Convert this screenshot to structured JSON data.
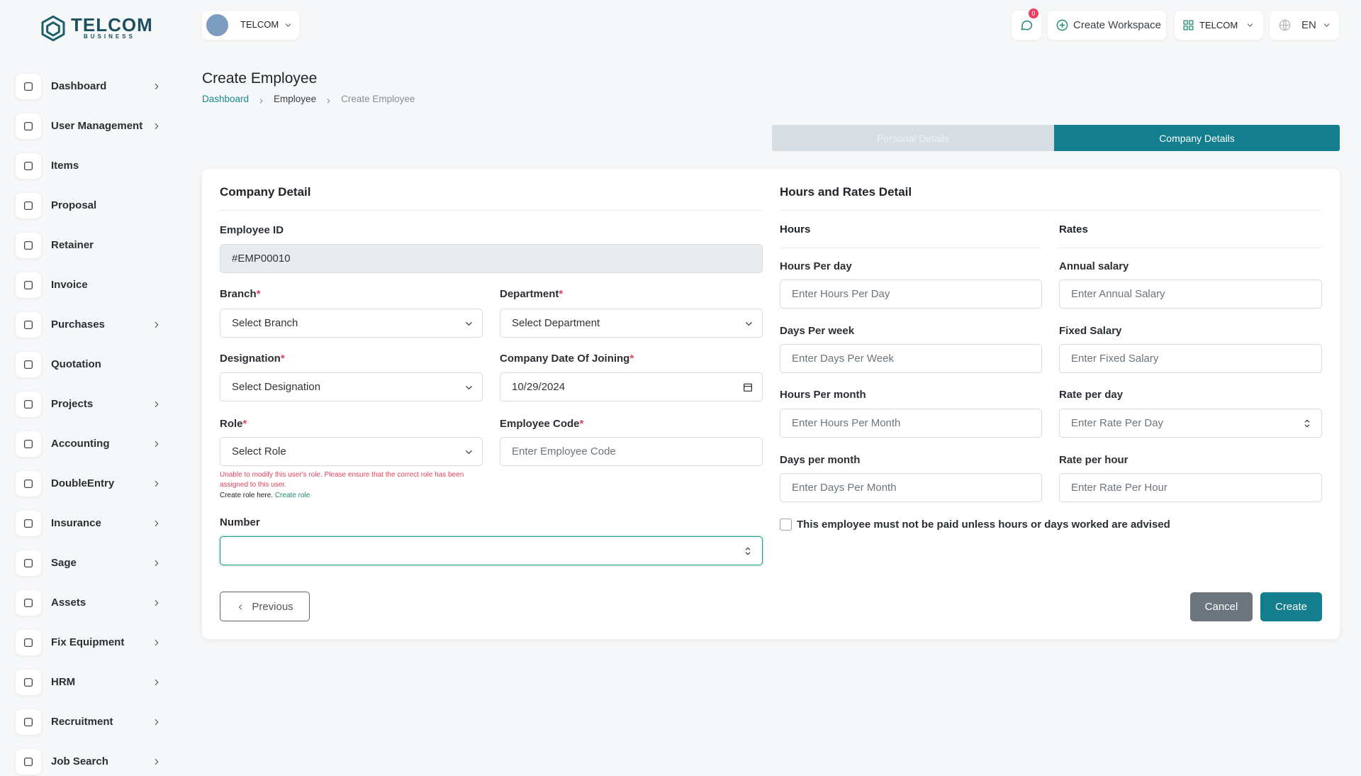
{
  "header": {
    "brand": "TELCOM",
    "brand_sub": "BUSINESS",
    "workspace": "TELCOM",
    "notifications": 0,
    "create_workspace": "Create Workspace",
    "current_workspace": "TELCOM",
    "language": "EN"
  },
  "sidebar": {
    "items": [
      {
        "label": "Dashboard",
        "submenu": true
      },
      {
        "label": "User Management",
        "submenu": true
      },
      {
        "label": "Items",
        "submenu": false
      },
      {
        "label": "Proposal",
        "submenu": false
      },
      {
        "label": "Retainer",
        "submenu": false
      },
      {
        "label": "Invoice",
        "submenu": false
      },
      {
        "label": "Purchases",
        "submenu": true
      },
      {
        "label": "Quotation",
        "submenu": false
      },
      {
        "label": "Projects",
        "submenu": true
      },
      {
        "label": "Accounting",
        "submenu": true
      },
      {
        "label": "DoubleEntry",
        "submenu": true
      },
      {
        "label": "Insurance",
        "submenu": true
      },
      {
        "label": "Sage",
        "submenu": true
      },
      {
        "label": "Assets",
        "submenu": true
      },
      {
        "label": "Fix Equipment",
        "submenu": true
      },
      {
        "label": "HRM",
        "submenu": true
      },
      {
        "label": "Recruitment",
        "submenu": true
      },
      {
        "label": "Job Search",
        "submenu": true
      }
    ]
  },
  "page": {
    "title": "Create Employee",
    "breadcrumb": [
      "Dashboard",
      "Employee",
      "Create Employee"
    ]
  },
  "tabs": {
    "items": [
      "Personal Details",
      "Company Details"
    ],
    "active": 1
  },
  "company_detail": {
    "title": "Company Detail",
    "required_mark": "*",
    "employee_id": {
      "label": "Employee ID",
      "value": "#EMP00010"
    },
    "branch": {
      "label": "Branch",
      "placeholder": "Select Branch",
      "required": true
    },
    "department": {
      "label": "Department",
      "placeholder": "Select Department",
      "required": true
    },
    "designation": {
      "label": "Designation",
      "placeholder": "Select Designation",
      "required": true
    },
    "date_of_joining": {
      "label": "Company Date Of Joining",
      "value": "10/29/2024",
      "required": true
    },
    "role": {
      "label": "Role",
      "placeholder": "Select Role",
      "required": true
    },
    "employee_code": {
      "label": "Employee Code",
      "placeholder": "Enter Employee Code",
      "required": true
    },
    "role_error": "Unable to modify this user's role. Please ensure that the correct role has been assigned to this user.",
    "role_hint": "Create role here.",
    "role_link": "Create role",
    "number": {
      "label": "Number"
    }
  },
  "hours_rates": {
    "title": "Hours and Rates Detail",
    "hours_title": "Hours",
    "rates_title": "Rates",
    "hours_per_day": {
      "label": "Hours Per day",
      "placeholder": "Enter Hours Per Day"
    },
    "days_per_week": {
      "label": "Days Per week",
      "placeholder": "Enter Days Per Week"
    },
    "hours_per_month": {
      "label": "Hours Per month",
      "placeholder": "Enter Hours Per Month"
    },
    "days_per_month": {
      "label": "Days per month",
      "placeholder": "Enter Days Per Month"
    },
    "annual_salary": {
      "label": "Annual salary",
      "placeholder": "Enter Annual Salary"
    },
    "fixed_salary": {
      "label": "Fixed Salary",
      "placeholder": "Enter Fixed Salary"
    },
    "rate_per_day": {
      "label": "Rate per day",
      "placeholder": "Enter Rate Per Day"
    },
    "rate_per_hour": {
      "label": "Rate per hour",
      "placeholder": "Enter Rate Per Hour"
    },
    "unpaid_notice": "This employee must not be paid unless hours or days worked are advised"
  },
  "actions": {
    "previous": "Previous",
    "cancel": "Cancel",
    "create": "Create"
  }
}
